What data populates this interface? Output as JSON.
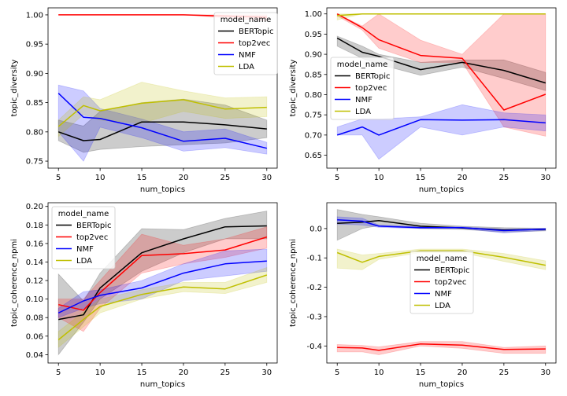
{
  "colors": {
    "BERTopic": "#000000",
    "top2vec": "#ff0000",
    "NMF": "#0000ff",
    "LDA": "#bfbf00"
  },
  "legend_title": "model_name",
  "chart_data": [
    {
      "type": "line",
      "xlabel": "num_topics",
      "ylabel": "topic_diversity",
      "x": [
        5,
        8,
        10,
        15,
        20,
        25,
        30
      ],
      "xticks": [
        "5",
        "10",
        "15",
        "20",
        "25",
        "30"
      ],
      "yticks": [
        "0.75",
        "0.80",
        "0.85",
        "0.90",
        "0.95",
        "1.00"
      ],
      "xlim": [
        3.75,
        31.25
      ],
      "ylim": [
        0.738,
        1.012
      ],
      "legend": "top-right",
      "series": [
        {
          "name": "BERTopic",
          "values": [
            0.8,
            0.785,
            0.787,
            0.817,
            0.817,
            0.812,
            0.805
          ],
          "lower": [
            0.785,
            0.765,
            0.77,
            0.775,
            0.778,
            0.781,
            0.79
          ],
          "upper": [
            0.82,
            0.81,
            0.835,
            0.85,
            0.856,
            0.846,
            0.82
          ]
        },
        {
          "name": "top2vec",
          "values": [
            1.0,
            1.0,
            1.0,
            1.0,
            1.0,
            0.998,
            0.996
          ],
          "lower": [
            1.0,
            1.0,
            1.0,
            1.0,
            1.0,
            0.995,
            0.99
          ],
          "upper": [
            1.0,
            1.0,
            1.0,
            1.0,
            1.0,
            1.0,
            1.0
          ]
        },
        {
          "name": "NMF",
          "values": [
            0.866,
            0.825,
            0.823,
            0.807,
            0.784,
            0.789,
            0.772
          ],
          "lower": [
            0.8,
            0.75,
            0.808,
            0.79,
            0.767,
            0.773,
            0.762
          ],
          "upper": [
            0.88,
            0.87,
            0.84,
            0.822,
            0.8,
            0.805,
            0.782
          ]
        },
        {
          "name": "LDA",
          "values": [
            0.809,
            0.845,
            0.836,
            0.849,
            0.855,
            0.839,
            0.842
          ],
          "lower": [
            0.792,
            0.83,
            0.82,
            0.815,
            0.835,
            0.823,
            0.826
          ],
          "upper": [
            0.82,
            0.86,
            0.855,
            0.885,
            0.87,
            0.858,
            0.86
          ]
        }
      ]
    },
    {
      "type": "line",
      "xlabel": "num_topics",
      "ylabel": "topic_diversity",
      "x": [
        5,
        8,
        10,
        15,
        20,
        25,
        30
      ],
      "xticks": [
        "5",
        "10",
        "15",
        "20",
        "25",
        "30"
      ],
      "yticks": [
        "0.65",
        "0.70",
        "0.75",
        "0.80",
        "0.85",
        "0.90",
        "0.95",
        "1.00"
      ],
      "xlim": [
        3.75,
        31.25
      ],
      "ylim": [
        0.618,
        1.015
      ],
      "legend": "center-left",
      "series": [
        {
          "name": "BERTopic",
          "values": [
            0.94,
            0.905,
            0.895,
            0.862,
            0.88,
            0.86,
            0.829
          ],
          "lower": [
            0.92,
            0.89,
            0.875,
            0.848,
            0.868,
            0.84,
            0.81
          ],
          "upper": [
            0.945,
            0.92,
            0.9,
            0.88,
            0.886,
            0.886,
            0.855
          ]
        },
        {
          "name": "top2vec",
          "values": [
            1.0,
            0.966,
            0.936,
            0.897,
            0.89,
            0.762,
            0.801
          ],
          "lower": [
            0.995,
            0.96,
            0.915,
            0.88,
            0.88,
            0.72,
            0.697
          ],
          "upper": [
            1.0,
            0.97,
            1.0,
            0.935,
            0.9,
            1.0,
            1.0
          ]
        },
        {
          "name": "NMF",
          "values": [
            0.7,
            0.72,
            0.7,
            0.738,
            0.737,
            0.738,
            0.73
          ],
          "lower": [
            0.7,
            0.7,
            0.64,
            0.72,
            0.7,
            0.72,
            0.71
          ],
          "upper": [
            0.72,
            0.74,
            0.74,
            0.745,
            0.775,
            0.755,
            0.75
          ]
        },
        {
          "name": "LDA",
          "values": [
            0.996,
            1.0,
            1.0,
            1.0,
            1.0,
            1.0,
            1.0
          ],
          "lower": [
            0.985,
            1.0,
            1.0,
            1.0,
            1.0,
            1.0,
            1.0
          ],
          "upper": [
            1.0,
            1.0,
            1.0,
            1.0,
            1.0,
            1.0,
            1.0
          ]
        }
      ]
    },
    {
      "type": "line",
      "xlabel": "num_topics",
      "ylabel": "topic_coherence_npmi",
      "x": [
        5,
        8,
        10,
        15,
        20,
        25,
        30
      ],
      "xticks": [
        "5",
        "10",
        "15",
        "20",
        "25",
        "30"
      ],
      "yticks": [
        "0.04",
        "0.06",
        "0.08",
        "0.10",
        "0.12",
        "0.14",
        "0.16",
        "0.18",
        "0.20"
      ],
      "xlim": [
        3.75,
        31.25
      ],
      "ylim": [
        0.031,
        0.204
      ],
      "legend": "top-left",
      "series": [
        {
          "name": "BERTopic",
          "values": [
            0.078,
            0.083,
            0.112,
            0.15,
            0.165,
            0.178,
            0.179
          ],
          "lower": [
            0.04,
            0.075,
            0.1,
            0.13,
            0.15,
            0.165,
            0.165
          ],
          "upper": [
            0.127,
            0.098,
            0.128,
            0.176,
            0.175,
            0.187,
            0.195
          ]
        },
        {
          "name": "top2vec",
          "values": [
            0.094,
            0.088,
            0.107,
            0.147,
            0.149,
            0.153,
            0.167
          ],
          "lower": [
            0.08,
            0.065,
            0.09,
            0.128,
            0.138,
            0.145,
            0.155
          ],
          "upper": [
            0.1,
            0.1,
            0.12,
            0.17,
            0.158,
            0.165,
            0.178
          ]
        },
        {
          "name": "NMF",
          "values": [
            0.085,
            0.098,
            0.104,
            0.112,
            0.128,
            0.138,
            0.141
          ],
          "lower": [
            0.08,
            0.09,
            0.095,
            0.1,
            0.12,
            0.125,
            0.13
          ],
          "upper": [
            0.09,
            0.108,
            0.11,
            0.12,
            0.138,
            0.152,
            0.154
          ]
        },
        {
          "name": "LDA",
          "values": [
            0.056,
            0.078,
            0.092,
            0.105,
            0.113,
            0.111,
            0.126
          ],
          "lower": [
            0.048,
            0.07,
            0.085,
            0.1,
            0.108,
            0.106,
            0.118
          ],
          "upper": [
            0.065,
            0.086,
            0.1,
            0.11,
            0.118,
            0.118,
            0.134
          ]
        }
      ]
    },
    {
      "type": "line",
      "xlabel": "num_topics",
      "ylabel": "topic_coherence_npmi",
      "x": [
        5,
        8,
        10,
        15,
        20,
        25,
        30
      ],
      "xticks": [
        "5",
        "10",
        "15",
        "20",
        "25",
        "30"
      ],
      "yticks": [
        "-0.4",
        "-0.3",
        "-0.2",
        "-0.1",
        "0.0"
      ],
      "xlim": [
        3.75,
        31.25
      ],
      "ylim": [
        -0.458,
        0.088
      ],
      "legend": "center",
      "series": [
        {
          "name": "BERTopic",
          "values": [
            0.018,
            0.022,
            0.027,
            0.008,
            0.002,
            -0.005,
            -0.003
          ],
          "lower": [
            -0.04,
            0.0,
            0.01,
            0.0,
            -0.003,
            -0.012,
            -0.008
          ],
          "upper": [
            0.065,
            0.048,
            0.04,
            0.018,
            0.008,
            0.003,
            0.001
          ]
        },
        {
          "name": "top2vec",
          "values": [
            -0.405,
            -0.407,
            -0.415,
            -0.393,
            -0.397,
            -0.412,
            -0.41
          ],
          "lower": [
            -0.42,
            -0.42,
            -0.43,
            -0.4,
            -0.408,
            -0.425,
            -0.425
          ],
          "upper": [
            -0.395,
            -0.398,
            -0.403,
            -0.385,
            -0.385,
            -0.405,
            -0.4
          ]
        },
        {
          "name": "NMF",
          "values": [
            0.03,
            0.025,
            0.008,
            0.003,
            0.003,
            -0.007,
            -0.002
          ],
          "lower": [
            0.015,
            0.012,
            0.004,
            0.0,
            0.0,
            -0.015,
            -0.006
          ],
          "upper": [
            0.04,
            0.035,
            0.012,
            0.006,
            0.006,
            -0.002,
            0.001
          ]
        },
        {
          "name": "LDA",
          "values": [
            -0.082,
            -0.115,
            -0.095,
            -0.076,
            -0.076,
            -0.098,
            -0.125
          ],
          "lower": [
            -0.135,
            -0.14,
            -0.105,
            -0.082,
            -0.083,
            -0.112,
            -0.14
          ],
          "upper": [
            -0.07,
            -0.09,
            -0.085,
            -0.07,
            -0.07,
            -0.085,
            -0.11
          ]
        }
      ]
    }
  ]
}
